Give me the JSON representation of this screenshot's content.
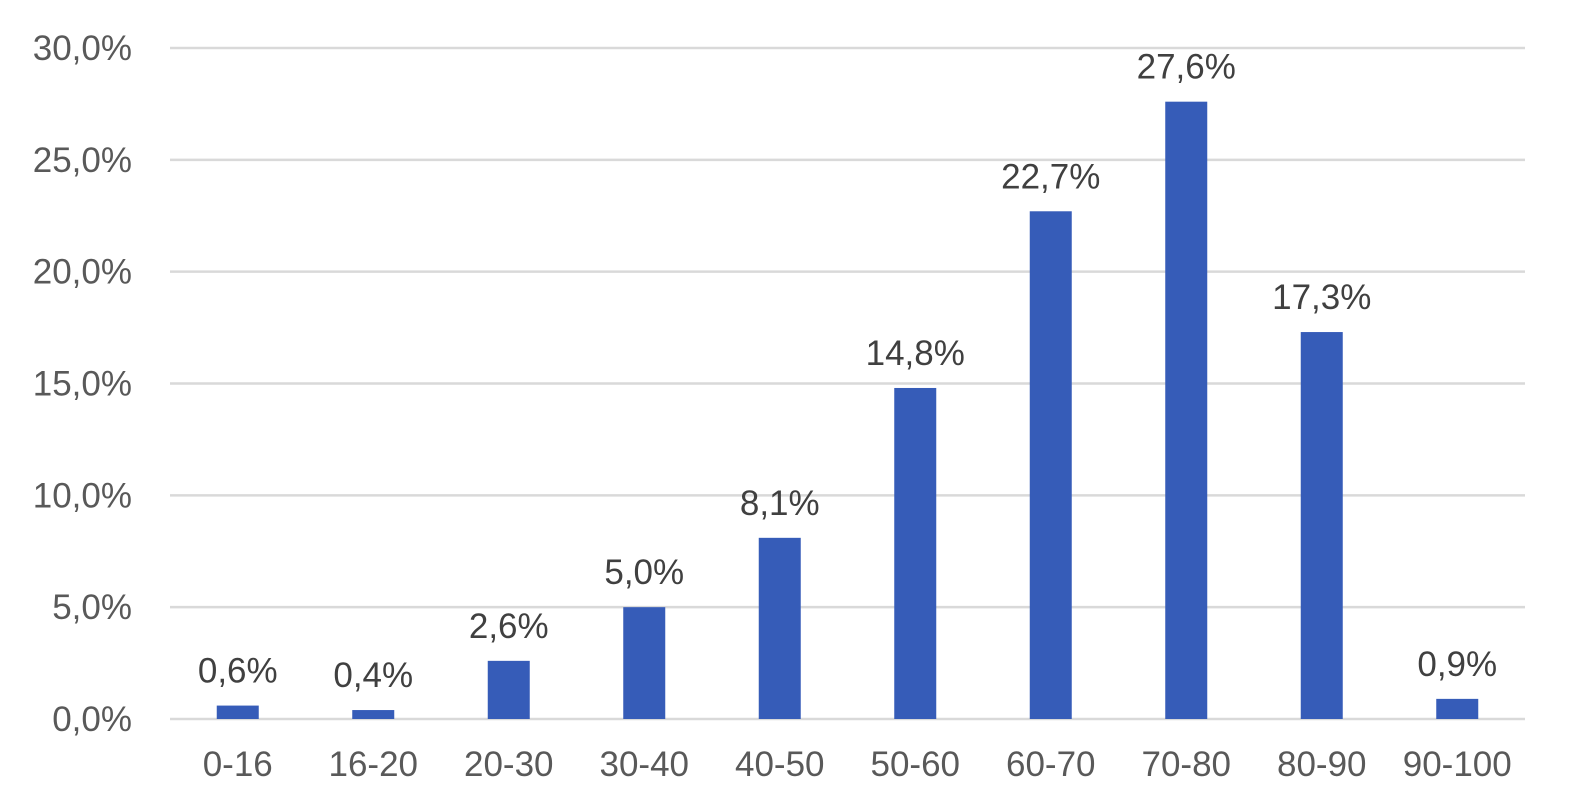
{
  "chart_data": {
    "type": "bar",
    "title": "",
    "xlabel": "",
    "ylabel": "",
    "categories": [
      "0-16",
      "16-20",
      "20-30",
      "30-40",
      "40-50",
      "50-60",
      "60-70",
      "70-80",
      "80-90",
      "90-100"
    ],
    "values": [
      0.6,
      0.4,
      2.6,
      5.0,
      8.1,
      14.8,
      22.7,
      27.6,
      17.3,
      0.9
    ],
    "value_labels": [
      "0,6%",
      "0,4%",
      "2,6%",
      "5,0%",
      "8,1%",
      "14,8%",
      "22,7%",
      "27,6%",
      "17,3%",
      "0,9%"
    ],
    "ylim": [
      0,
      30
    ],
    "y_ticks": [
      0,
      5,
      10,
      15,
      20,
      25,
      30
    ],
    "y_tick_labels": [
      "0,0%",
      "5,0%",
      "10,0%",
      "15,0%",
      "20,0%",
      "25,0%",
      "30,0%"
    ],
    "grid": true,
    "legend": "none",
    "bar_color": "#365CB8",
    "grid_color": "#D9D9D9"
  }
}
